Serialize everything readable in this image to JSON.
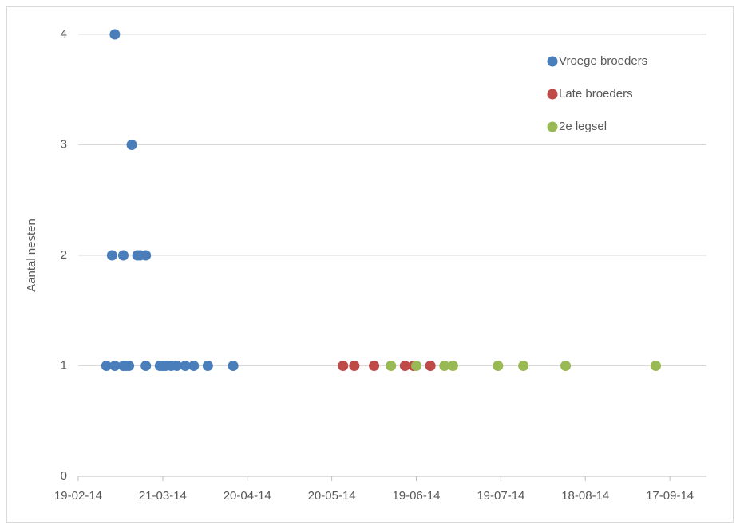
{
  "chart_data": {
    "type": "scatter",
    "y_label": "Aantal nesten",
    "xlim": [
      "2014-02-19",
      "2014-09-30"
    ],
    "xticks": [
      {
        "value": "2014-02-19",
        "label": "19-02-14"
      },
      {
        "value": "2014-03-21",
        "label": "21-03-14"
      },
      {
        "value": "2014-04-20",
        "label": "20-04-14"
      },
      {
        "value": "2014-05-20",
        "label": "20-05-14"
      },
      {
        "value": "2014-06-19",
        "label": "19-06-14"
      },
      {
        "value": "2014-07-19",
        "label": "19-07-14"
      },
      {
        "value": "2014-08-18",
        "label": "18-08-14"
      },
      {
        "value": "2014-09-17",
        "label": "17-09-14"
      }
    ],
    "ylim": [
      0,
      4
    ],
    "yticks": [
      0,
      1,
      2,
      3,
      4
    ],
    "grid": true,
    "legend": "upper right",
    "series": [
      {
        "name": "Vroege broeders",
        "color": "#4a7ebb",
        "x": [
          "2014-03-04",
          "2014-03-10",
          "2014-03-03",
          "2014-03-07",
          "2014-03-12",
          "2014-03-13",
          "2014-03-15",
          "2014-03-01",
          "2014-03-04",
          "2014-03-07",
          "2014-03-08",
          "2014-03-09",
          "2014-03-15",
          "2014-03-20",
          "2014-03-21",
          "2014-03-22",
          "2014-03-24",
          "2014-03-26",
          "2014-03-29",
          "2014-04-01",
          "2014-04-06",
          "2014-04-15"
        ],
        "values": [
          4,
          3,
          2,
          2,
          2,
          2,
          2,
          1,
          1,
          1,
          1,
          1,
          1,
          1,
          1,
          1,
          1,
          1,
          1,
          1,
          1,
          1
        ]
      },
      {
        "name": "Late broeders",
        "color": "#be4b48",
        "x": [
          "2014-05-24",
          "2014-05-28",
          "2014-06-04",
          "2014-06-15",
          "2014-06-18",
          "2014-06-24"
        ],
        "values": [
          1,
          1,
          1,
          1,
          1,
          1
        ]
      },
      {
        "name": "2e legsel",
        "color": "#98b954",
        "x": [
          "2014-06-10",
          "2014-06-19",
          "2014-06-29",
          "2014-07-02",
          "2014-07-18",
          "2014-07-27",
          "2014-08-11",
          "2014-09-12"
        ],
        "values": [
          1,
          1,
          1,
          1,
          1,
          1,
          1,
          1
        ]
      }
    ]
  }
}
